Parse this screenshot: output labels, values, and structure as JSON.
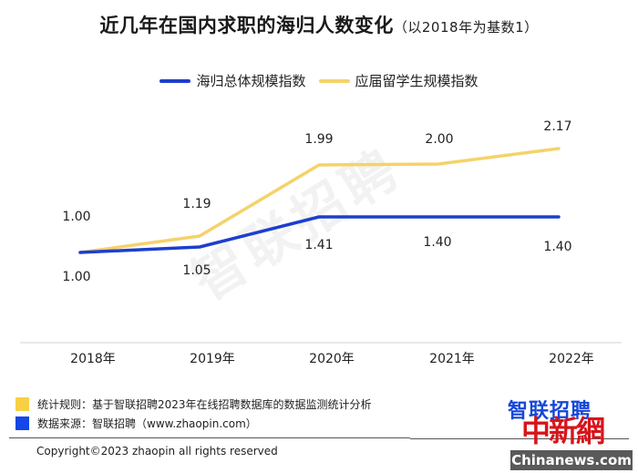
{
  "header": {
    "title": "近几年在国内求职的海归人数变化",
    "subtitle": "（以2018年为基数1）"
  },
  "legend": [
    {
      "label": "海归总体规模指数",
      "color": "#1d3fcc"
    },
    {
      "label": "应届留学生规模指数",
      "color": "#f5d26b"
    }
  ],
  "watermark": "智联招聘",
  "chart_data": {
    "type": "line",
    "title": "近几年在国内求职的海归人数变化（以2018年为基数1）",
    "xlabel": "",
    "ylabel": "",
    "categories": [
      "2018年",
      "2019年",
      "2020年",
      "2021年",
      "2022年"
    ],
    "series": [
      {
        "name": "海归总体规模指数",
        "color": "#1d3fcc",
        "values": [
          1.0,
          1.05,
          1.41,
          1.4,
          1.4
        ]
      },
      {
        "name": "应届留学生规模指数",
        "color": "#f5d26b",
        "values": [
          1.0,
          1.19,
          1.99,
          2.0,
          2.17
        ]
      }
    ],
    "data_labels": {
      "overall": [
        "1.00",
        "1.05",
        "1.41",
        "1.40",
        "1.40"
      ],
      "graduates": [
        "1.00",
        "1.19",
        "1.99",
        "2.00",
        "2.17"
      ]
    },
    "grid": false,
    "legend_position": "top"
  },
  "notes": [
    {
      "label": "统计规则：基于智联招聘2023年在线招聘数据库的数据监测统计分析",
      "color": "#f9cf45"
    },
    {
      "label": "数据来源：智联招聘（www.zhaopin.com）",
      "color": "#1446e8"
    }
  ],
  "footer": {
    "copyright": "Copyright©2023 zhaopin all rights reserved",
    "logo_zhaopin": "智联招聘",
    "logo_chinanews_cn": "中新網",
    "logo_chinanews_en": "Chinanews.com"
  }
}
